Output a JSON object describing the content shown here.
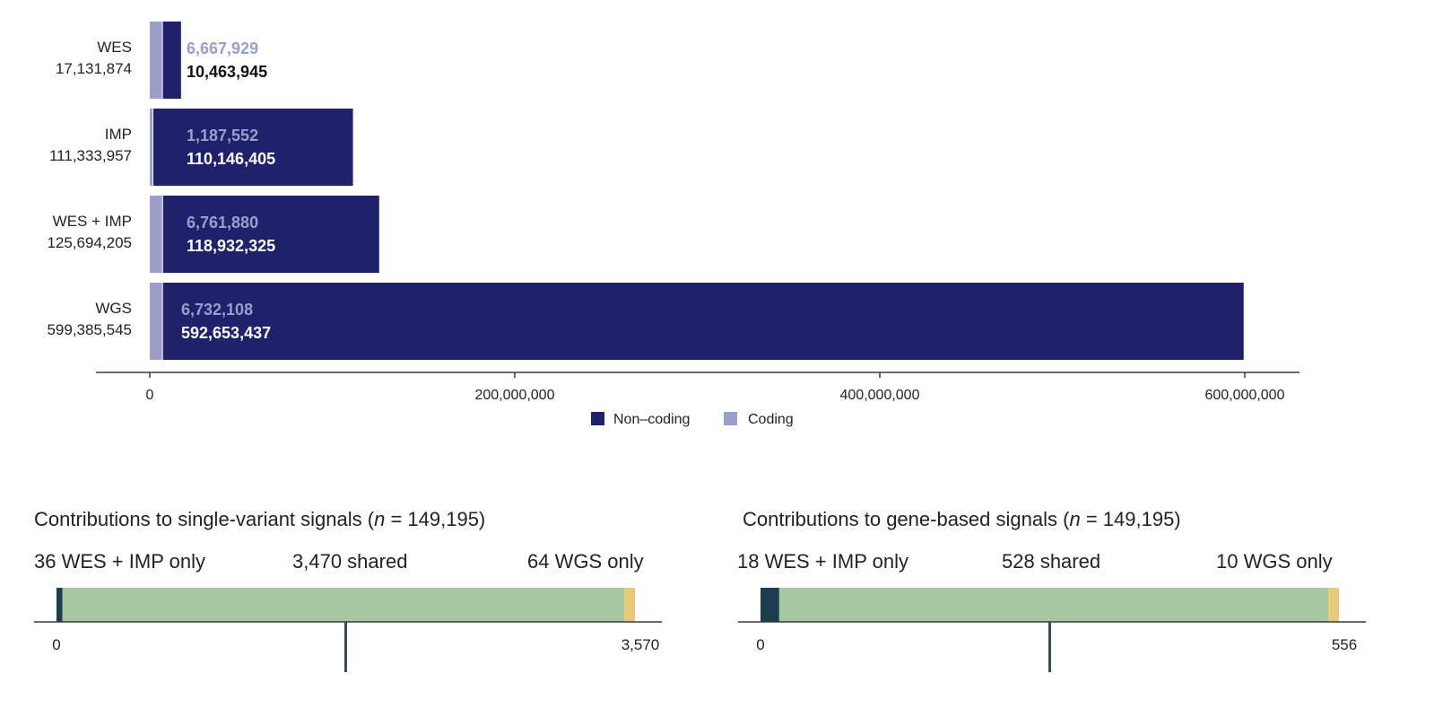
{
  "chart_data": [
    {
      "type": "bar",
      "orientation": "horizontal",
      "stacked": true,
      "categories": [
        {
          "name": "WES",
          "total": "17,131,874"
        },
        {
          "name": "IMP",
          "total": "111,333,957"
        },
        {
          "name": "WES + IMP",
          "total": "125,694,205"
        },
        {
          "name": "WGS",
          "total": "599,385,545"
        }
      ],
      "series": [
        {
          "name": "Coding",
          "color": "#9b9dcc",
          "values": [
            6667929,
            1187552,
            6761880,
            6732108
          ],
          "labels": [
            "6,667,929",
            "1,187,552",
            "6,761,880",
            "6,732,108"
          ]
        },
        {
          "name": "Non–coding",
          "color": "#1f226b",
          "values": [
            10463945,
            110146405,
            118932325,
            592653437
          ],
          "labels": [
            "10,463,945",
            "110,146,405",
            "118,932,325",
            "592,653,437"
          ]
        }
      ],
      "xlim": [
        0,
        630000000
      ],
      "xticks": [
        0,
        200000000,
        400000000,
        600000000
      ],
      "xtick_labels": [
        "0",
        "200,000,000",
        "400,000,000",
        "600,000,000"
      ],
      "legend": {
        "placement": "bottom-center",
        "items": [
          {
            "label": "Non–coding",
            "color": "#1f226b"
          },
          {
            "label": "Coding",
            "color": "#9b9dcc"
          }
        ]
      }
    },
    {
      "type": "bar",
      "orientation": "horizontal",
      "stacked": true,
      "title_prefix": "Contributions to single-variant signals (",
      "title_n": "n",
      "title_suffix": " = 149,195)",
      "segment_labels": [
        "36 WES + IMP only",
        "3,470 shared",
        "64 WGS only"
      ],
      "values": [
        36,
        3470,
        64
      ],
      "colors": [
        "#1e3c4f",
        "#a5c8a0",
        "#e8c97a"
      ],
      "xlim": [
        0,
        3570
      ],
      "tick_labels": [
        "0",
        "3,570"
      ]
    },
    {
      "type": "bar",
      "orientation": "horizontal",
      "stacked": true,
      "title_prefix": "Contributions to gene-based signals (",
      "title_n": "n",
      "title_suffix": " = 149,195)",
      "segment_labels": [
        "18 WES + IMP only",
        "528 shared",
        "10 WGS only"
      ],
      "values": [
        18,
        528,
        10
      ],
      "colors": [
        "#1e3c4f",
        "#a5c8a0",
        "#e8c97a"
      ],
      "xlim": [
        0,
        556
      ],
      "tick_labels": [
        "0",
        "556"
      ]
    }
  ],
  "axis_color": "#3a3a3a"
}
